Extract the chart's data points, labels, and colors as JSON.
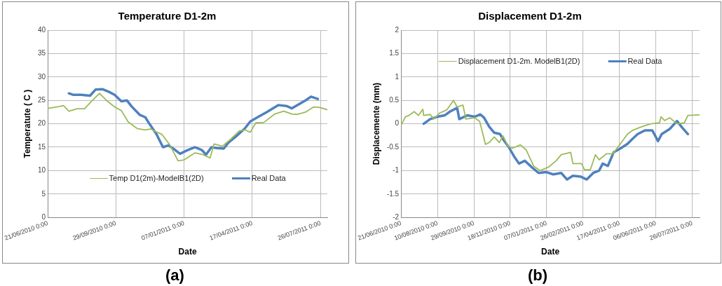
{
  "chart_data": [
    {
      "type": "line",
      "title": "Temperature D1-2m",
      "xlabel": "Date",
      "ylabel": "Temperatute ( C )",
      "annotations": [
        "(a)"
      ],
      "xlim": [
        "2010-06-21",
        "2011-08-05"
      ],
      "xticks": [
        {
          "value": "2010-06-21",
          "label": "21/06/2010 0:00"
        },
        {
          "value": "2010-09-29",
          "label": "29/09/2010 0:00"
        },
        {
          "value": "2011-01-07",
          "label": "07/01/2011 0:00"
        },
        {
          "value": "2011-04-17",
          "label": "17/04/2011 0:00"
        },
        {
          "value": "2011-07-26",
          "label": "26/07/2011 0:00"
        }
      ],
      "ylim": [
        0,
        40
      ],
      "yticks": [
        0,
        5,
        10,
        15,
        20,
        25,
        30,
        35,
        40
      ],
      "grid": true,
      "legend": "bottom",
      "series": [
        {
          "name": "Temp D1(2m)-ModelB1(2D)",
          "color": "#9bbb59",
          "x": [
            "2010-06-21",
            "2010-07-08",
            "2010-07-14",
            "2010-07-22",
            "2010-08-03",
            "2010-08-14",
            "2010-08-24",
            "2010-09-05",
            "2010-09-15",
            "2010-09-27",
            "2010-10-07",
            "2010-10-17",
            "2010-10-30",
            "2010-11-11",
            "2010-11-19",
            "2010-11-25",
            "2010-12-05",
            "2010-12-17",
            "2010-12-29",
            "2011-01-07",
            "2011-01-23",
            "2011-02-02",
            "2011-02-14",
            "2011-02-20",
            "2011-03-04",
            "2011-03-17",
            "2011-03-29",
            "2011-04-06",
            "2011-04-14",
            "2011-04-22",
            "2011-05-04",
            "2011-05-20",
            "2011-06-02",
            "2011-06-14",
            "2011-06-22",
            "2011-07-04",
            "2011-07-16",
            "2011-07-24",
            "2011-08-05"
          ],
          "values": [
            23.3,
            23.7,
            23.9,
            22.7,
            23.2,
            23.2,
            24.8,
            26.5,
            25.0,
            23.6,
            22.8,
            20.4,
            19.0,
            18.7,
            18.9,
            18.4,
            17.8,
            15.5,
            12.1,
            12.3,
            13.8,
            13.5,
            12.7,
            15.7,
            15.2,
            16.8,
            18.5,
            18.7,
            18.2,
            20.2,
            20.3,
            22.1,
            22.7,
            22.1,
            22.0,
            22.5,
            23.6,
            23.5,
            23.0
          ]
        },
        {
          "name": "Real Data",
          "color": "#4f81bd",
          "x": [
            "2010-07-22",
            "2010-07-28",
            "2010-08-09",
            "2010-08-22",
            "2010-08-30",
            "2010-09-09",
            "2010-09-19",
            "2010-09-27",
            "2010-10-07",
            "2010-10-15",
            "2010-10-22",
            "2010-11-03",
            "2010-11-11",
            "2010-11-17",
            "2010-11-27",
            "2010-12-07",
            "2010-12-15",
            "2010-12-25",
            "2011-01-01",
            "2011-01-11",
            "2011-01-23",
            "2011-02-02",
            "2011-02-08",
            "2011-02-16",
            "2011-02-24",
            "2011-03-06",
            "2011-03-13",
            "2011-03-24",
            "2011-04-06",
            "2011-04-14",
            "2011-04-26",
            "2011-05-08",
            "2011-05-25",
            "2011-06-06",
            "2011-06-14",
            "2011-06-22",
            "2011-07-04",
            "2011-07-12",
            "2011-07-22"
          ],
          "values": [
            26.5,
            26.2,
            26.2,
            26.0,
            27.3,
            27.4,
            26.8,
            26.2,
            24.8,
            25.0,
            23.7,
            21.9,
            21.4,
            20.0,
            17.9,
            15.0,
            15.4,
            14.4,
            13.6,
            14.3,
            15.0,
            14.4,
            13.4,
            15.0,
            14.8,
            14.7,
            16.0,
            17.3,
            19.0,
            20.5,
            21.5,
            22.5,
            24.0,
            23.8,
            23.3,
            24.0,
            25.0,
            25.8,
            25.3
          ]
        }
      ]
    },
    {
      "type": "line",
      "title": "Displacement D1-2m",
      "xlabel": "Date",
      "ylabel": "Displacemente (mm)",
      "annotations": [
        "(b)"
      ],
      "xlim": [
        "2010-06-21",
        "2011-08-05"
      ],
      "xticks": [
        {
          "value": "2010-06-21",
          "label": "21/06/2010 0:00"
        },
        {
          "value": "2010-08-10",
          "label": "10/08/2010 0:00"
        },
        {
          "value": "2010-09-29",
          "label": "29/09/2010 0:00"
        },
        {
          "value": "2010-11-18",
          "label": "18/11/2010 0:00"
        },
        {
          "value": "2011-01-07",
          "label": "07/01/2011 0:00"
        },
        {
          "value": "2011-02-26",
          "label": "26/02/2011 0:00"
        },
        {
          "value": "2011-04-17",
          "label": "17/04/2011 0:00"
        },
        {
          "value": "2011-06-06",
          "label": "06/06/2011 0:00"
        },
        {
          "value": "2011-07-26",
          "label": "26/07/2011 0:00"
        }
      ],
      "ylim": [
        -2,
        2
      ],
      "yticks": [
        -2,
        -1.5,
        -1,
        -0.5,
        0,
        0.5,
        1,
        1.5,
        2
      ],
      "grid": true,
      "legend": "top",
      "series": [
        {
          "name": "Displacement D1-2m. ModelB1(2D)",
          "color": "#9bbb59",
          "x": [
            "2010-06-21",
            "2010-06-27",
            "2010-07-02",
            "2010-07-09",
            "2010-07-15",
            "2010-07-21",
            "2010-07-22",
            "2010-07-31",
            "2010-08-05",
            "2010-08-13",
            "2010-08-23",
            "2010-09-01",
            "2010-09-06",
            "2010-09-14",
            "2010-09-18",
            "2010-09-30",
            "2010-10-07",
            "2010-10-15",
            "2010-10-20",
            "2010-10-27",
            "2010-11-03",
            "2010-11-08",
            "2010-11-15",
            "2010-11-21",
            "2010-12-02",
            "2010-12-10",
            "2010-12-20",
            "2010-12-29",
            "2011-01-10",
            "2011-01-20",
            "2011-01-27",
            "2011-02-09",
            "2011-02-12",
            "2011-02-24",
            "2011-02-28",
            "2011-03-08",
            "2011-03-15",
            "2011-03-20",
            "2011-03-30",
            "2011-04-08",
            "2011-04-21",
            "2011-04-28",
            "2011-05-05",
            "2011-05-18",
            "2011-05-30",
            "2011-06-11",
            "2011-06-13",
            "2011-06-18",
            "2011-06-25",
            "2011-07-05",
            "2011-07-15",
            "2011-07-20",
            "2011-08-05"
          ],
          "values": [
            -0.03,
            0.15,
            0.18,
            0.26,
            0.18,
            0.31,
            0.18,
            0.2,
            0.1,
            0.23,
            0.3,
            0.5,
            0.36,
            0.4,
            0.1,
            0.13,
            0.05,
            -0.44,
            -0.4,
            -0.28,
            -0.4,
            -0.26,
            -0.48,
            -0.52,
            -0.45,
            -0.56,
            -0.9,
            -1.0,
            -0.92,
            -0.79,
            -0.66,
            -0.61,
            -0.85,
            -0.85,
            -0.98,
            -0.98,
            -0.66,
            -0.77,
            -0.64,
            -0.64,
            -0.37,
            -0.22,
            -0.14,
            -0.06,
            0.0,
            0.02,
            0.15,
            0.07,
            0.13,
            0.0,
            0.02,
            0.18,
            0.19
          ]
        },
        {
          "name": "Real Data",
          "color": "#4f81bd",
          "x": [
            "2010-07-22",
            "2010-07-31",
            "2010-08-10",
            "2010-08-20",
            "2010-08-27",
            "2010-09-06",
            "2010-09-09",
            "2010-09-20",
            "2010-09-30",
            "2010-10-08",
            "2010-10-13",
            "2010-10-20",
            "2010-10-27",
            "2010-11-04",
            "2010-11-09",
            "2010-11-16",
            "2010-11-23",
            "2010-11-30",
            "2010-12-08",
            "2010-12-17",
            "2010-12-27",
            "2011-01-06",
            "2011-01-16",
            "2011-01-27",
            "2011-02-04",
            "2011-02-12",
            "2011-02-23",
            "2011-03-03",
            "2011-03-12",
            "2011-03-20",
            "2011-03-25",
            "2011-04-01",
            "2011-04-09",
            "2011-04-18",
            "2011-04-28",
            "2011-05-05",
            "2011-05-12",
            "2011-05-22",
            "2011-06-01",
            "2011-06-09",
            "2011-06-14",
            "2011-06-25",
            "2011-07-05",
            "2011-07-12",
            "2011-07-20"
          ],
          "values": [
            0.0,
            0.1,
            0.15,
            0.18,
            0.26,
            0.34,
            0.1,
            0.18,
            0.15,
            0.2,
            0.13,
            -0.06,
            -0.19,
            -0.22,
            -0.35,
            -0.5,
            -0.69,
            -0.85,
            -0.79,
            -0.92,
            -1.05,
            -1.03,
            -1.08,
            -1.05,
            -1.19,
            -1.11,
            -1.13,
            -1.19,
            -1.05,
            -1.0,
            -0.85,
            -0.9,
            -0.61,
            -0.53,
            -0.43,
            -0.32,
            -0.22,
            -0.14,
            -0.14,
            -0.37,
            -0.22,
            -0.11,
            0.06,
            -0.08,
            -0.22
          ]
        }
      ]
    }
  ]
}
